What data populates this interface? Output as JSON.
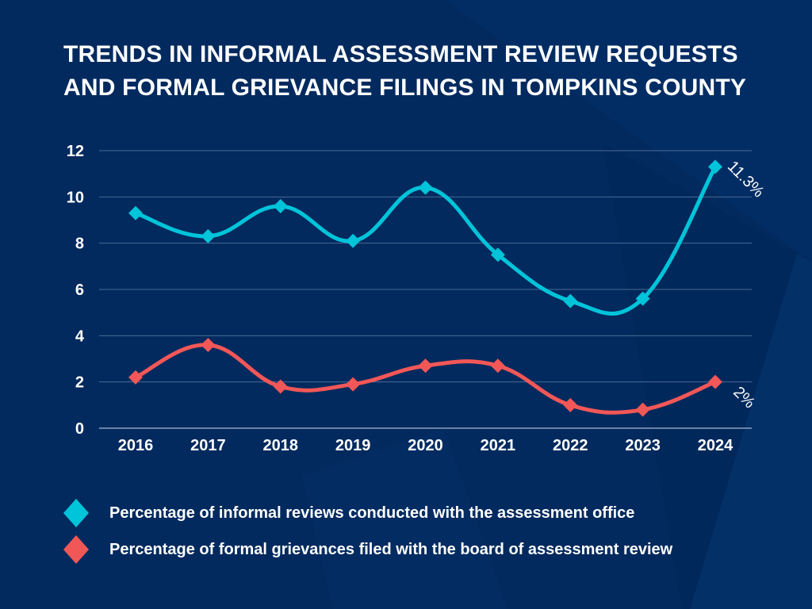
{
  "title": {
    "line1": "TRENDS IN INFORMAL ASSESSMENT REVIEW REQUESTS",
    "line2": "AND FORMAL GRIEVANCE FILINGS IN TOMPKINS COUNTY"
  },
  "colors": {
    "background": "#022a5e",
    "series_informal": "#00c4d9",
    "series_formal": "#f25757",
    "text": "#ffffff",
    "grid": "#4a6a96"
  },
  "chart_data": {
    "type": "line",
    "title": "TRENDS IN INFORMAL ASSESSMENT REVIEW REQUESTS AND FORMAL GRIEVANCE FILINGS IN TOMPKINS COUNTY",
    "xlabel": "",
    "ylabel": "",
    "categories": [
      "2016",
      "2017",
      "2018",
      "2019",
      "2020",
      "2021",
      "2022",
      "2023",
      "2024"
    ],
    "ylim": [
      0,
      12
    ],
    "yticks": [
      "0",
      "2",
      "4",
      "6",
      "8",
      "10",
      "12"
    ],
    "grid": true,
    "legend_position": "bottom-left",
    "series": [
      {
        "name": "Percentage of informal reviews conducted with the assessment office",
        "color": "#00c4d9",
        "marker": "diamond",
        "smooth": true,
        "values": [
          9.3,
          8.3,
          9.6,
          8.1,
          10.4,
          7.5,
          5.5,
          5.6,
          11.3
        ],
        "end_label": "11.3%"
      },
      {
        "name": "Percentage of formal grievances filed with the board of assessment review",
        "color": "#f25757",
        "marker": "diamond",
        "smooth": true,
        "values": [
          2.2,
          3.6,
          1.8,
          1.9,
          2.7,
          2.7,
          1.0,
          0.8,
          2.0
        ],
        "end_label": "2%"
      }
    ]
  },
  "legend": [
    {
      "label": "Percentage of informal reviews conducted with the assessment office",
      "color": "#00c4d9",
      "icon": "diamond-icon"
    },
    {
      "label": "Percentage of formal grievances filed with the board of assessment review",
      "color": "#f25757",
      "icon": "diamond-icon"
    }
  ]
}
